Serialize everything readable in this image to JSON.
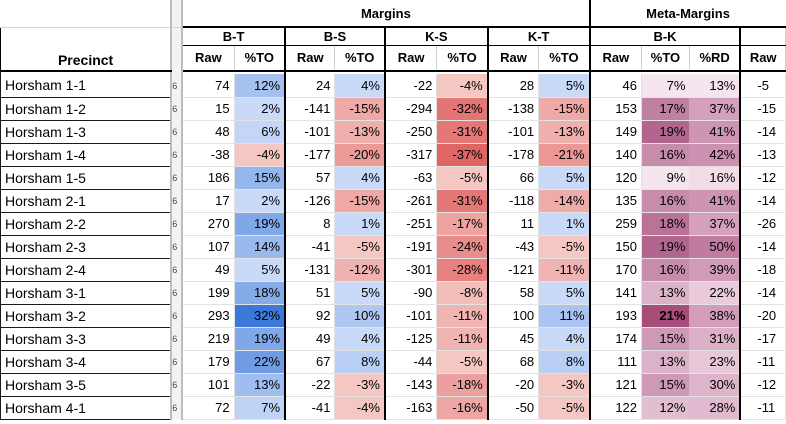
{
  "header": {
    "precinct_label": "Precinct",
    "groups": [
      "Margins",
      "Meta-Margins"
    ],
    "subgroups": [
      "B-T",
      "B-S",
      "K-S",
      "K-T",
      "B-K"
    ],
    "col_raw": "Raw",
    "col_to": "%TO",
    "col_rd": "%RD",
    "cut_raw": "Raw"
  },
  "rows": [
    {
      "precinct": "Horsham 1-1",
      "edge": "6",
      "bt_raw": "74",
      "bt_to": "12%",
      "bs_raw": "24",
      "bs_to": "4%",
      "ks_raw": "-22",
      "ks_to": "-4%",
      "kt_raw": "28",
      "kt_to": "5%",
      "bk_raw": "46",
      "bk_to": "7%",
      "bk_rd": "13%",
      "cut": "-5"
    },
    {
      "precinct": "Horsham 1-2",
      "edge": "6",
      "bt_raw": "15",
      "bt_to": "2%",
      "bs_raw": "-141",
      "bs_to": "-15%",
      "ks_raw": "-294",
      "ks_to": "-32%",
      "kt_raw": "-138",
      "kt_to": "-15%",
      "bk_raw": "153",
      "bk_to": "17%",
      "bk_rd": "37%",
      "cut": "-15"
    },
    {
      "precinct": "Horsham 1-3",
      "edge": "6",
      "bt_raw": "48",
      "bt_to": "6%",
      "bs_raw": "-101",
      "bs_to": "-13%",
      "ks_raw": "-250",
      "ks_to": "-31%",
      "kt_raw": "-101",
      "kt_to": "-13%",
      "bk_raw": "149",
      "bk_to": "19%",
      "bk_rd": "41%",
      "cut": "-14"
    },
    {
      "precinct": "Horsham 1-4",
      "edge": "6",
      "bt_raw": "-38",
      "bt_to": "-4%",
      "bs_raw": "-177",
      "bs_to": "-20%",
      "ks_raw": "-317",
      "ks_to": "-37%",
      "kt_raw": "-178",
      "kt_to": "-21%",
      "bk_raw": "140",
      "bk_to": "16%",
      "bk_rd": "42%",
      "cut": "-13"
    },
    {
      "precinct": "Horsham 1-5",
      "edge": "6",
      "bt_raw": "186",
      "bt_to": "15%",
      "bs_raw": "57",
      "bs_to": "4%",
      "ks_raw": "-63",
      "ks_to": "-5%",
      "kt_raw": "66",
      "kt_to": "5%",
      "bk_raw": "120",
      "bk_to": "9%",
      "bk_rd": "16%",
      "cut": "-12"
    },
    {
      "precinct": "Horsham 2-1",
      "edge": "6",
      "bt_raw": "17",
      "bt_to": "2%",
      "bs_raw": "-126",
      "bs_to": "-15%",
      "ks_raw": "-261",
      "ks_to": "-31%",
      "kt_raw": "-118",
      "kt_to": "-14%",
      "bk_raw": "135",
      "bk_to": "16%",
      "bk_rd": "41%",
      "cut": "-14"
    },
    {
      "precinct": "Horsham 2-2",
      "edge": "6",
      "bt_raw": "270",
      "bt_to": "19%",
      "bs_raw": "8",
      "bs_to": "1%",
      "ks_raw": "-251",
      "ks_to": "-17%",
      "kt_raw": "11",
      "kt_to": "1%",
      "bk_raw": "259",
      "bk_to": "18%",
      "bk_rd": "37%",
      "cut": "-26"
    },
    {
      "precinct": "Horsham 2-3",
      "edge": "6",
      "bt_raw": "107",
      "bt_to": "14%",
      "bs_raw": "-41",
      "bs_to": "-5%",
      "ks_raw": "-191",
      "ks_to": "-24%",
      "kt_raw": "-43",
      "kt_to": "-5%",
      "bk_raw": "150",
      "bk_to": "19%",
      "bk_rd": "50%",
      "cut": "-14"
    },
    {
      "precinct": "Horsham 2-4",
      "edge": "6",
      "bt_raw": "49",
      "bt_to": "5%",
      "bs_raw": "-131",
      "bs_to": "-12%",
      "ks_raw": "-301",
      "ks_to": "-28%",
      "kt_raw": "-121",
      "kt_to": "-11%",
      "bk_raw": "170",
      "bk_to": "16%",
      "bk_rd": "39%",
      "cut": "-18"
    },
    {
      "precinct": "Horsham 3-1",
      "edge": "6",
      "bt_raw": "199",
      "bt_to": "18%",
      "bs_raw": "51",
      "bs_to": "5%",
      "ks_raw": "-90",
      "ks_to": "-8%",
      "kt_raw": "58",
      "kt_to": "5%",
      "bk_raw": "141",
      "bk_to": "13%",
      "bk_rd": "22%",
      "cut": "-14"
    },
    {
      "precinct": "Horsham 3-2",
      "edge": "6",
      "bt_raw": "293",
      "bt_to": "32%",
      "bs_raw": "92",
      "bs_to": "10%",
      "ks_raw": "-101",
      "ks_to": "-11%",
      "kt_raw": "100",
      "kt_to": "11%",
      "bk_raw": "193",
      "bk_to": "21%",
      "bk_rd": "38%",
      "cut": "-20"
    },
    {
      "precinct": "Horsham 3-3",
      "edge": "6",
      "bt_raw": "219",
      "bt_to": "19%",
      "bs_raw": "49",
      "bs_to": "4%",
      "ks_raw": "-125",
      "ks_to": "-11%",
      "kt_raw": "45",
      "kt_to": "4%",
      "bk_raw": "174",
      "bk_to": "15%",
      "bk_rd": "31%",
      "cut": "-17"
    },
    {
      "precinct": "Horsham 3-4",
      "edge": "6",
      "bt_raw": "179",
      "bt_to": "22%",
      "bs_raw": "67",
      "bs_to": "8%",
      "ks_raw": "-44",
      "ks_to": "-5%",
      "kt_raw": "68",
      "kt_to": "8%",
      "bk_raw": "111",
      "bk_to": "13%",
      "bk_rd": "23%",
      "cut": "-11"
    },
    {
      "precinct": "Horsham 3-5",
      "edge": "6",
      "bt_raw": "101",
      "bt_to": "13%",
      "bs_raw": "-22",
      "bs_to": "-3%",
      "ks_raw": "-143",
      "ks_to": "-18%",
      "kt_raw": "-20",
      "kt_to": "-3%",
      "bk_raw": "121",
      "bk_to": "15%",
      "bk_rd": "30%",
      "cut": "-12"
    },
    {
      "precinct": "Horsham 4-1",
      "edge": "6",
      "bt_raw": "72",
      "bt_to": "7%",
      "bs_raw": "-41",
      "bs_to": "-4%",
      "ks_raw": "-163",
      "ks_to": "-16%",
      "kt_raw": "-50",
      "kt_to": "-5%",
      "bk_raw": "122",
      "bk_to": "12%",
      "bk_rd": "28%",
      "cut": "-11"
    }
  ],
  "colors": {
    "blue_dark": "#3c78d8",
    "blue_light": "#c9daf8",
    "red_light": "#f4c7c3",
    "red_dark": "#e06666",
    "meta_light": "#f5e5ee",
    "meta_dark": "#a64d79"
  }
}
